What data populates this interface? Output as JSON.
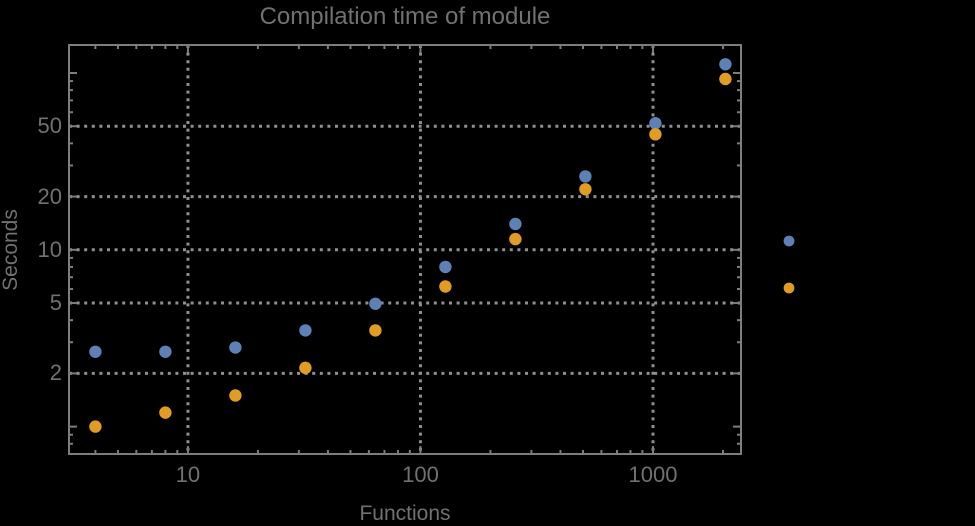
{
  "colors": {
    "background": "#000000",
    "text": "#717171",
    "frame": "#7d7d7d",
    "grid": "#8f8f8f",
    "series_blue": "#5E81B5",
    "series_orange": "#E19C24"
  },
  "chart_data": {
    "type": "scatter",
    "title": "Compilation time of module",
    "xlabel": "Functions",
    "ylabel": "Seconds",
    "x_scale": "log",
    "y_scale": "log",
    "xlim": [
      3.08,
      2390
    ],
    "ylim": [
      0.7,
      144
    ],
    "x_ticks_labeled": [
      10,
      100,
      1000
    ],
    "y_ticks_labeled": [
      50,
      20,
      10,
      5,
      2
    ],
    "y_ticks_unlabeled_major": [
      100,
      1
    ],
    "grid": "dotted gridlines at labeled ticks only",
    "x": [
      4,
      8,
      16,
      32,
      64,
      128,
      256,
      512,
      1024,
      2048
    ],
    "series": [
      {
        "name": "blue",
        "color": "#5E81B5",
        "values": [
          2.65,
          2.65,
          2.8,
          3.5,
          4.95,
          8.0,
          14.0,
          26.0,
          52.0,
          112.0
        ]
      },
      {
        "name": "orange",
        "color": "#E19C24",
        "values": [
          1.0,
          1.2,
          1.5,
          2.15,
          3.5,
          6.2,
          11.5,
          22.0,
          45.0,
          92.5
        ]
      }
    ],
    "legend": {
      "position": "outside-right",
      "labels_visible": false,
      "entries": [
        {
          "marker": "circle",
          "color": "#5E81B5",
          "label": ""
        },
        {
          "marker": "circle",
          "color": "#E19C24",
          "label": ""
        }
      ]
    }
  }
}
